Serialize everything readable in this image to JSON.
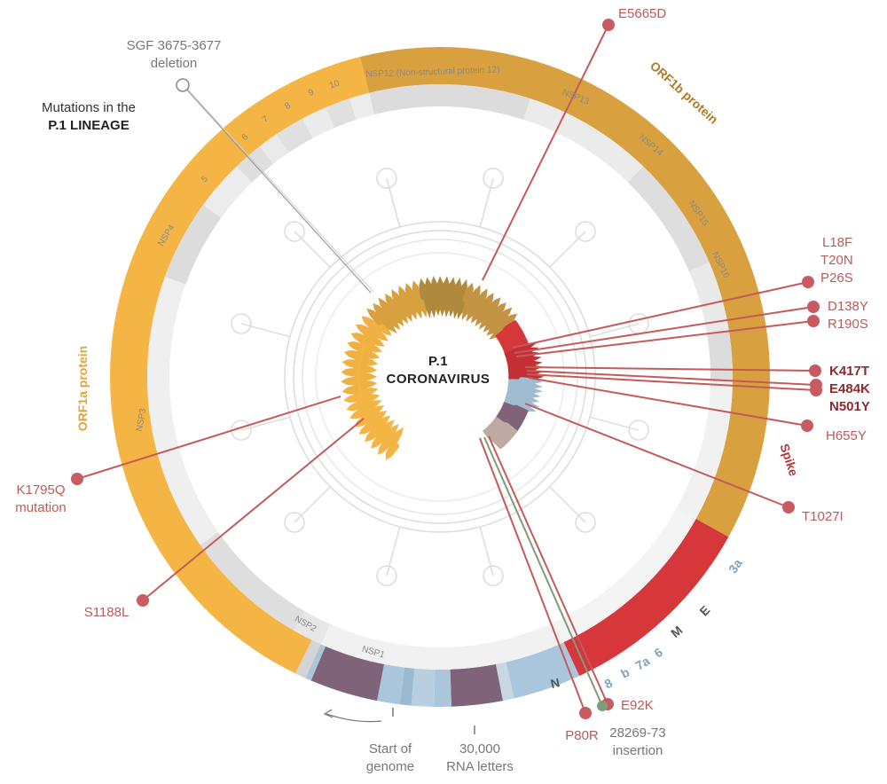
{
  "title": {
    "line1": "Mutations in the",
    "line2": "P.1 LINEAGE"
  },
  "center": {
    "line1": "P.1",
    "line2": "CORONAVIRUS"
  },
  "proteins": {
    "orf1a": "ORF1a protein",
    "orf1b": "ORF1b protein",
    "spike": "Spike",
    "n": "N",
    "e": "E",
    "m": "M",
    "three_a": "3a",
    "six": "6",
    "seven_a": "7a",
    "seven_b": "b",
    "eight": "8"
  },
  "nsp": {
    "nsp1": "NSP1",
    "nsp2": "NSP2",
    "nsp3": "NSP3",
    "nsp4": "NSP4",
    "n5": "5",
    "n6": "6",
    "n7": "7",
    "n8": "8",
    "n9": "9",
    "n10": "10",
    "nsp12": "NSP12 (Non-structural protein 12)",
    "nsp13": "NSP13",
    "nsp14": "NSP14",
    "nsp15": "NSP15",
    "nsp16": "NSP16"
  },
  "mutations": {
    "sgf_line1": "SGF 3675-3677",
    "sgf_line2": "deletion",
    "e5665d": "E5665D",
    "l18f": "L18F",
    "t20n": "T20N",
    "p26s": "P26S",
    "d138y": "D138Y",
    "r190s": "R190S",
    "k417t": "K417T",
    "e484k": "E484K",
    "n501y": "N501Y",
    "h655y": "H655Y",
    "t1027i": "T1027I",
    "k1795q_line1": "K1795Q",
    "k1795q_line2": "mutation",
    "s1188l": "S1188L",
    "p80r": "P80R",
    "e92k": "E92K",
    "ins_line1": "28269-73",
    "ins_line2": "insertion"
  },
  "axis": {
    "start_line1": "Start of",
    "start_line2": "genome",
    "end_line1": "30,000",
    "end_line2": "RNA letters"
  },
  "colors": {
    "orf1a": "#f4b544",
    "orf1b": "#d9a03f",
    "spike": "#d6373b",
    "accessory_blue": "#a9c6dc",
    "membrane_purple": "#7f6479",
    "mutation_line": "#c45a5a",
    "insertion_green": "#7f9c7a"
  }
}
